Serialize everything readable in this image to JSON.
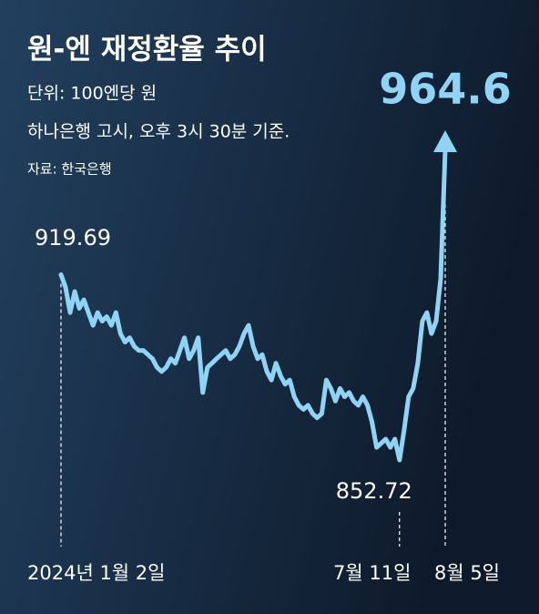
{
  "chart_data": {
    "type": "line",
    "title": "원-엔 재정환율 추이",
    "subtitle": "단위: 100엔당 원",
    "note": "하나은행 고시, 오후 3시 30분 기준.",
    "source": "자료: 한국은행",
    "color": "#8fd3f5",
    "categories": [
      "2024년 1월 2일",
      null,
      null,
      null,
      null,
      null,
      null,
      null,
      null,
      null,
      null,
      null,
      null,
      null,
      null,
      null,
      null,
      null,
      null,
      null,
      null,
      null,
      null,
      null,
      null,
      null,
      null,
      null,
      null,
      null,
      null,
      null,
      null,
      null,
      null,
      null,
      null,
      null,
      null,
      null,
      null,
      null,
      null,
      null,
      null,
      null,
      null,
      null,
      null,
      null,
      null,
      null,
      null,
      null,
      null,
      null,
      null,
      null,
      null,
      null,
      null,
      null,
      null,
      null,
      null,
      null,
      null,
      null,
      null,
      null,
      null,
      null,
      null,
      null,
      "7월 11일",
      null,
      null,
      null,
      null,
      null,
      null,
      null,
      null,
      null,
      "8월 5일"
    ],
    "values": [
      919.69,
      915.1,
      906.0,
      913.6,
      907.5,
      910.6,
      906.0,
      901.4,
      906.0,
      902.9,
      904.5,
      901.4,
      906.0,
      898.4,
      895.3,
      896.9,
      893.8,
      892.3,
      892.3,
      890.8,
      889.3,
      886.2,
      884.7,
      886.2,
      889.3,
      887.7,
      892.3,
      896.9,
      889.3,
      892.3,
      896.9,
      877.1,
      886.2,
      887.7,
      889.3,
      890.8,
      892.3,
      889.3,
      890.8,
      893.8,
      898.4,
      901.4,
      893.8,
      889.3,
      890.8,
      884.7,
      881.6,
      887.7,
      883.2,
      880.1,
      881.6,
      875.6,
      872.5,
      871.0,
      872.5,
      869.5,
      868.0,
      869.5,
      881.6,
      878.6,
      874.0,
      878.6,
      875.6,
      877.1,
      874.0,
      872.5,
      875.6,
      872.5,
      866.4,
      857.3,
      858.8,
      860.3,
      857.3,
      860.3,
      852.72,
      863.4,
      875.6,
      878.6,
      887.7,
      902.9,
      906.0,
      898.4,
      902.9,
      918.2,
      964.6
    ]
  }
}
